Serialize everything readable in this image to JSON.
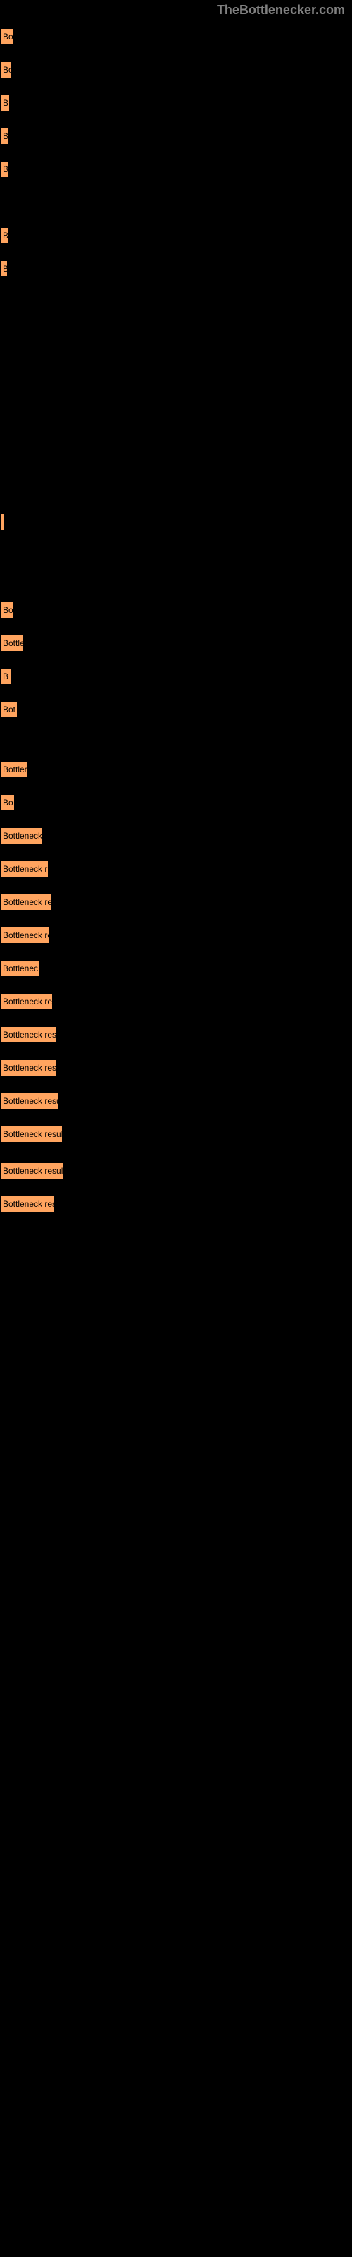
{
  "header": {
    "brand": "TheBottlenecker.com"
  },
  "chart": {
    "bar_color": "#ffa45f",
    "text_color": "#000000",
    "background_color": "#000000",
    "bars": [
      {
        "width": 21,
        "label": "Bo"
      },
      {
        "width": 17,
        "label": "Bo"
      },
      {
        "width": 15,
        "label": "B"
      },
      {
        "width": 13,
        "label": "B"
      },
      {
        "width": 13,
        "label": "B"
      },
      {
        "width": 4,
        "label": ""
      },
      {
        "width": 13,
        "label": "B"
      },
      {
        "width": 12,
        "label": "B"
      },
      {
        "width": 3,
        "label": ""
      },
      {
        "width": 2,
        "label": ""
      }
    ],
    "thin_bar": {
      "width": 8
    },
    "lower_bars": [
      {
        "width": 21,
        "label": "Bo"
      },
      {
        "width": 35,
        "label": "Bottle"
      },
      {
        "width": 17,
        "label": "B"
      },
      {
        "width": 26,
        "label": "Bot"
      }
    ],
    "bottom_bars": [
      {
        "width": 40,
        "label": "Bottler"
      },
      {
        "width": 22,
        "label": "Bo"
      },
      {
        "width": 62,
        "label": "Bottleneck"
      },
      {
        "width": 70,
        "label": "Bottleneck r"
      },
      {
        "width": 75,
        "label": "Bottleneck res"
      },
      {
        "width": 72,
        "label": "Bottleneck re"
      },
      {
        "width": 58,
        "label": "Bottlenec"
      },
      {
        "width": 76,
        "label": "Bottleneck res"
      },
      {
        "width": 82,
        "label": "Bottleneck resul"
      },
      {
        "width": 82,
        "label": "Bottleneck resu"
      },
      {
        "width": 84,
        "label": "Bottleneck resul"
      },
      {
        "width": 90,
        "label": "Bottleneck result"
      },
      {
        "width": 91,
        "label": "Bottleneck result"
      },
      {
        "width": 78,
        "label": "Bottleneck resu"
      }
    ]
  }
}
